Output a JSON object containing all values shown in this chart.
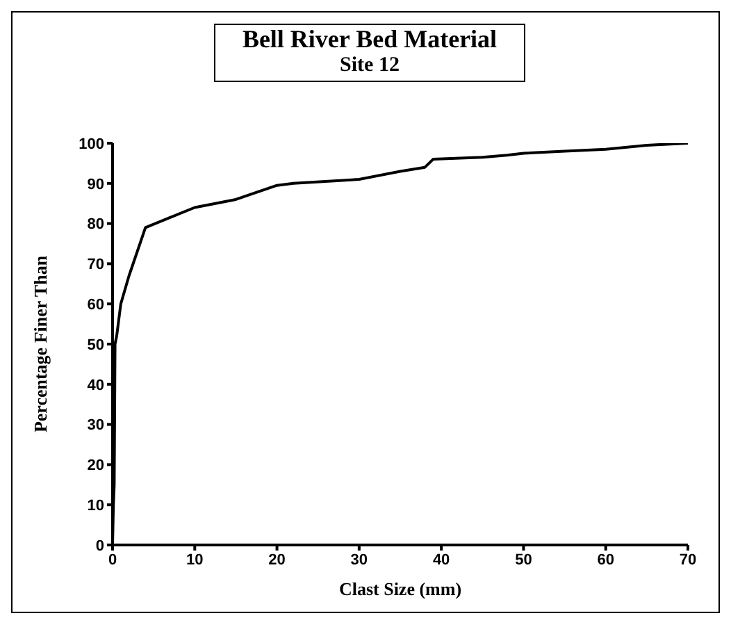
{
  "chart_data": {
    "type": "line",
    "title": "Bell River Bed Material",
    "subtitle": "Site 12",
    "xlabel": "Clast Size (mm)",
    "ylabel": "Percentage Finer Than",
    "x": [
      0,
      0.1,
      0.2,
      0.3,
      0.5,
      1,
      2,
      4,
      7,
      10,
      15,
      20,
      22,
      30,
      35,
      38,
      39,
      45,
      48,
      50,
      55,
      60,
      65,
      70
    ],
    "series": [
      {
        "color": "#000000",
        "values": [
          0,
          10,
          15,
          50,
          52,
          60,
          67,
          79,
          81.5,
          84,
          86,
          89.5,
          90,
          91,
          93,
          94,
          96,
          96.5,
          97,
          97.5,
          98,
          98.5,
          99.5,
          100
        ]
      }
    ],
    "xlim": [
      0,
      70
    ],
    "xticks": [
      0,
      10,
      20,
      30,
      40,
      50,
      60,
      70
    ],
    "ylim": [
      0,
      100
    ],
    "yticks": [
      0,
      10,
      20,
      30,
      40,
      50,
      60,
      70,
      80,
      90,
      100
    ],
    "grid": false,
    "legend": false,
    "marker": "none",
    "line_style": "solid"
  }
}
